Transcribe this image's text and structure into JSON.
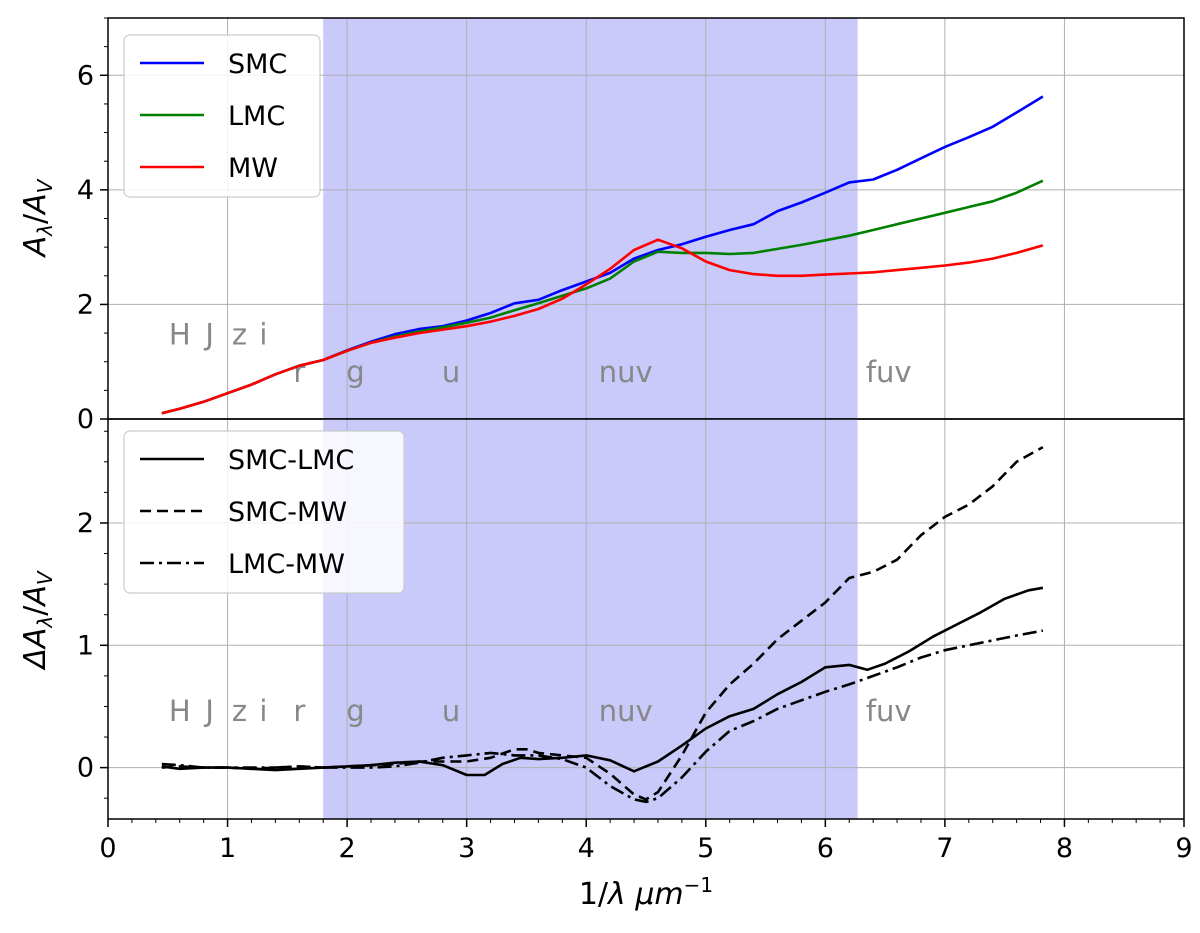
{
  "chart_data": [
    {
      "type": "line",
      "panel": "top",
      "xlabel": "",
      "ylabel": "A_λ/A_V",
      "ylabel_parts": {
        "main": "A",
        "sub1": "λ",
        "slash": "/",
        "main2": "A",
        "sub2": "V"
      },
      "xlim": [
        0,
        9
      ],
      "ylim": [
        0,
        7
      ],
      "yticks": [
        0,
        2,
        4,
        6
      ],
      "ytick_labels": [
        "0",
        "2",
        "4",
        "6"
      ],
      "grid": true,
      "legend_position": "top-left",
      "shaded_x_range": [
        1.8,
        6.27
      ],
      "shade_color": "#c9c9fa",
      "band_labels": [
        {
          "text": "H",
          "x": 0.6,
          "y": 1.3
        },
        {
          "text": "J",
          "x": 0.85,
          "y": 1.3
        },
        {
          "text": "z",
          "x": 1.1,
          "y": 1.3
        },
        {
          "text": "i",
          "x": 1.3,
          "y": 1.3
        },
        {
          "text": "r",
          "x": 1.6,
          "y": 0.65
        },
        {
          "text": "g",
          "x": 2.07,
          "y": 0.65
        },
        {
          "text": "u",
          "x": 2.87,
          "y": 0.65
        },
        {
          "text": "nuv",
          "x": 4.33,
          "y": 0.65
        },
        {
          "text": "fuv",
          "x": 6.53,
          "y": 0.65
        }
      ],
      "series": [
        {
          "name": "SMC",
          "color": "#0000ff",
          "style": "solid",
          "x": [
            0.45,
            0.6,
            0.8,
            1.0,
            1.2,
            1.4,
            1.6,
            1.8,
            2.0,
            2.2,
            2.4,
            2.6,
            2.8,
            3.0,
            3.2,
            3.4,
            3.6,
            3.8,
            4.0,
            4.2,
            4.4,
            4.6,
            4.8,
            5.0,
            5.2,
            5.4,
            5.6,
            5.8,
            6.0,
            6.2,
            6.4,
            6.6,
            6.8,
            7.0,
            7.2,
            7.4,
            7.6,
            7.82
          ],
          "y": [
            0.1,
            0.18,
            0.3,
            0.45,
            0.6,
            0.78,
            0.93,
            1.03,
            1.2,
            1.35,
            1.48,
            1.57,
            1.62,
            1.72,
            1.85,
            2.02,
            2.08,
            2.25,
            2.4,
            2.55,
            2.8,
            2.95,
            3.05,
            3.18,
            3.3,
            3.4,
            3.63,
            3.78,
            3.95,
            4.13,
            4.18,
            4.35,
            4.55,
            4.75,
            4.92,
            5.1,
            5.35,
            5.63
          ]
        },
        {
          "name": "LMC",
          "color": "#008000",
          "style": "solid",
          "x": [
            0.45,
            0.6,
            0.8,
            1.0,
            1.2,
            1.4,
            1.6,
            1.8,
            2.0,
            2.2,
            2.4,
            2.6,
            2.8,
            3.0,
            3.2,
            3.4,
            3.6,
            3.8,
            4.0,
            4.2,
            4.4,
            4.6,
            4.8,
            5.0,
            5.2,
            5.4,
            5.6,
            5.8,
            6.0,
            6.2,
            6.4,
            6.6,
            6.8,
            7.0,
            7.2,
            7.4,
            7.6,
            7.82
          ],
          "y": [
            0.1,
            0.18,
            0.3,
            0.45,
            0.6,
            0.78,
            0.93,
            1.03,
            1.19,
            1.33,
            1.44,
            1.53,
            1.6,
            1.68,
            1.77,
            1.9,
            2.02,
            2.15,
            2.28,
            2.45,
            2.75,
            2.92,
            2.9,
            2.9,
            2.88,
            2.9,
            2.97,
            3.04,
            3.12,
            3.2,
            3.3,
            3.4,
            3.5,
            3.6,
            3.7,
            3.8,
            3.95,
            4.16
          ]
        },
        {
          "name": "MW",
          "color": "#ff0000",
          "style": "solid",
          "x": [
            0.45,
            0.6,
            0.8,
            1.0,
            1.2,
            1.4,
            1.6,
            1.8,
            2.0,
            2.2,
            2.4,
            2.6,
            2.8,
            3.0,
            3.2,
            3.4,
            3.6,
            3.8,
            4.0,
            4.2,
            4.4,
            4.6,
            4.8,
            5.0,
            5.2,
            5.4,
            5.6,
            5.8,
            6.0,
            6.2,
            6.4,
            6.6,
            6.8,
            7.0,
            7.2,
            7.4,
            7.6,
            7.82
          ],
          "y": [
            0.1,
            0.18,
            0.3,
            0.45,
            0.6,
            0.78,
            0.93,
            1.03,
            1.19,
            1.33,
            1.42,
            1.5,
            1.56,
            1.62,
            1.7,
            1.8,
            1.92,
            2.1,
            2.35,
            2.62,
            2.95,
            3.13,
            2.98,
            2.75,
            2.6,
            2.53,
            2.5,
            2.5,
            2.52,
            2.54,
            2.56,
            2.6,
            2.64,
            2.68,
            2.73,
            2.8,
            2.9,
            3.03
          ]
        }
      ]
    },
    {
      "type": "line",
      "panel": "bottom",
      "xlabel": "1/λ μm⁻¹",
      "xlabel_parts": {
        "main": "1/",
        "lambda": "λ",
        "mu": " μm",
        "sup": "−1"
      },
      "ylabel": "ΔA_λ/A_V",
      "ylabel_parts": {
        "main": "ΔA",
        "sub1": "λ",
        "slash": "/",
        "main2": "A",
        "sub2": "V"
      },
      "xlim": [
        0,
        9
      ],
      "ylim": [
        -0.42,
        2.85
      ],
      "xticks": [
        0,
        1,
        2,
        3,
        4,
        5,
        6,
        7,
        8,
        9
      ],
      "xtick_labels": [
        "0",
        "1",
        "2",
        "3",
        "4",
        "5",
        "6",
        "7",
        "8",
        "9"
      ],
      "yticks": [
        0,
        1,
        2
      ],
      "ytick_labels": [
        "0",
        "1",
        "2"
      ],
      "grid": true,
      "legend_position": "top-left",
      "shaded_x_range": [
        1.8,
        6.27
      ],
      "shade_color": "#c9c9fa",
      "band_labels": [
        {
          "text": "H",
          "x": 0.6,
          "y": 0.38
        },
        {
          "text": "J",
          "x": 0.85,
          "y": 0.38
        },
        {
          "text": "z",
          "x": 1.1,
          "y": 0.38
        },
        {
          "text": "i",
          "x": 1.3,
          "y": 0.38
        },
        {
          "text": "r",
          "x": 1.6,
          "y": 0.38
        },
        {
          "text": "g",
          "x": 2.07,
          "y": 0.38
        },
        {
          "text": "u",
          "x": 2.87,
          "y": 0.38
        },
        {
          "text": "nuv",
          "x": 4.33,
          "y": 0.38
        },
        {
          "text": "fuv",
          "x": 6.53,
          "y": 0.38
        }
      ],
      "series": [
        {
          "name": "SMC-LMC",
          "color": "#000000",
          "style": "solid",
          "x": [
            0.45,
            0.6,
            0.8,
            1.0,
            1.2,
            1.4,
            1.6,
            1.8,
            2.0,
            2.2,
            2.4,
            2.6,
            2.8,
            3.0,
            3.15,
            3.3,
            3.45,
            3.6,
            3.8,
            4.0,
            4.2,
            4.4,
            4.6,
            4.8,
            5.0,
            5.2,
            5.4,
            5.6,
            5.8,
            6.0,
            6.2,
            6.35,
            6.5,
            6.7,
            6.9,
            7.1,
            7.3,
            7.5,
            7.7,
            7.82
          ],
          "y": [
            0.01,
            -0.01,
            0.0,
            0.0,
            -0.01,
            -0.02,
            -0.01,
            0.0,
            0.01,
            0.02,
            0.04,
            0.05,
            0.02,
            -0.06,
            -0.06,
            0.03,
            0.08,
            0.07,
            0.08,
            0.1,
            0.06,
            -0.03,
            0.05,
            0.18,
            0.32,
            0.42,
            0.48,
            0.6,
            0.7,
            0.82,
            0.84,
            0.8,
            0.85,
            0.95,
            1.07,
            1.17,
            1.27,
            1.38,
            1.45,
            1.47
          ]
        },
        {
          "name": "SMC-MW",
          "color": "#000000",
          "style": "dashed",
          "x": [
            0.45,
            0.6,
            0.8,
            1.0,
            1.2,
            1.4,
            1.6,
            1.8,
            2.0,
            2.2,
            2.4,
            2.6,
            2.8,
            3.0,
            3.2,
            3.4,
            3.5,
            3.6,
            3.8,
            4.0,
            4.2,
            4.4,
            4.5,
            4.6,
            4.8,
            5.0,
            5.2,
            5.4,
            5.6,
            5.8,
            6.0,
            6.2,
            6.4,
            6.6,
            6.8,
            7.0,
            7.2,
            7.4,
            7.6,
            7.82
          ],
          "y": [
            0.0,
            0.01,
            0.0,
            0.0,
            -0.01,
            0.0,
            0.01,
            0.0,
            0.01,
            0.02,
            0.03,
            0.05,
            0.05,
            0.05,
            0.08,
            0.15,
            0.15,
            0.12,
            0.1,
            0.08,
            -0.05,
            -0.22,
            -0.26,
            -0.2,
            0.1,
            0.45,
            0.68,
            0.85,
            1.05,
            1.2,
            1.35,
            1.55,
            1.6,
            1.7,
            1.9,
            2.05,
            2.15,
            2.3,
            2.5,
            2.62
          ]
        },
        {
          "name": "LMC-MW",
          "color": "#000000",
          "style": "dashdot",
          "x": [
            0.45,
            0.6,
            0.8,
            1.0,
            1.2,
            1.4,
            1.6,
            1.8,
            2.0,
            2.2,
            2.4,
            2.6,
            2.8,
            3.0,
            3.2,
            3.4,
            3.6,
            3.8,
            4.0,
            4.2,
            4.4,
            4.5,
            4.6,
            4.8,
            5.0,
            5.2,
            5.4,
            5.6,
            5.8,
            6.0,
            6.2,
            6.4,
            6.6,
            6.8,
            7.0,
            7.2,
            7.4,
            7.6,
            7.82
          ],
          "y": [
            0.03,
            0.02,
            0.0,
            0.0,
            0.0,
            0.0,
            0.01,
            0.0,
            0.0,
            0.0,
            0.01,
            0.04,
            0.08,
            0.1,
            0.12,
            0.1,
            0.1,
            0.07,
            0.0,
            -0.15,
            -0.26,
            -0.28,
            -0.25,
            -0.08,
            0.13,
            0.3,
            0.38,
            0.48,
            0.55,
            0.62,
            0.68,
            0.75,
            0.82,
            0.9,
            0.96,
            1.0,
            1.04,
            1.08,
            1.12
          ]
        }
      ]
    }
  ]
}
